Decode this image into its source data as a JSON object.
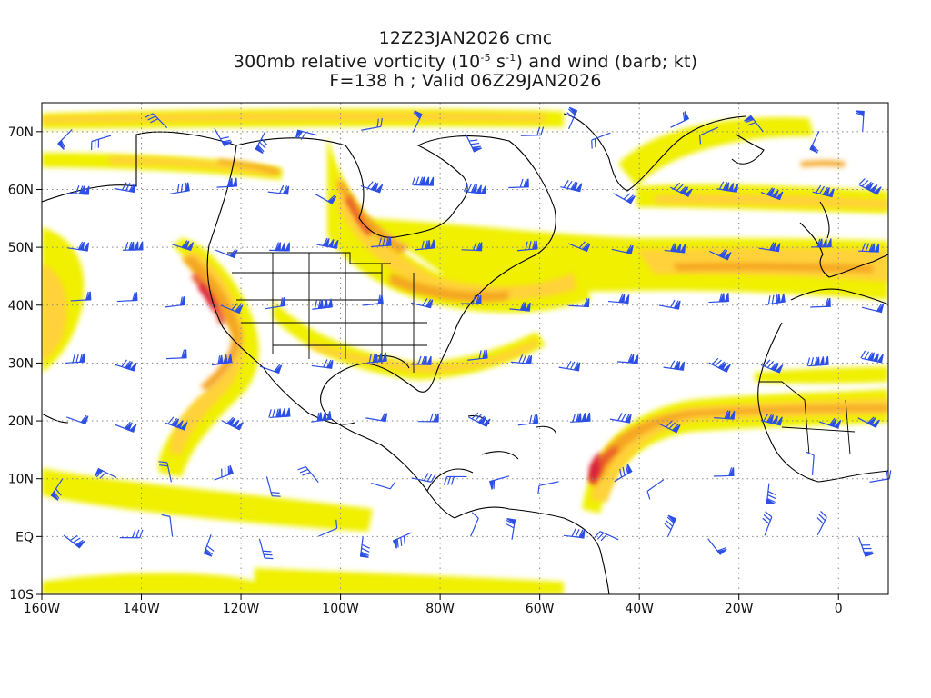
{
  "title": {
    "line1": "12Z23JAN2026 cmc",
    "line2_a": "300mb relative vorticity (10",
    "line2_exp1": "-5",
    "line2_b": " s",
    "line2_exp2": "-1",
    "line2_c": ") and wind (barb; kt)",
    "line3": "F=138 h ; Valid 06Z29JAN2026"
  },
  "axes": {
    "lon_labels": [
      "160W",
      "140W",
      "120W",
      "100W",
      "80W",
      "60W",
      "40W",
      "20W",
      "0"
    ],
    "lon_values": [
      -160,
      -140,
      -120,
      -100,
      -80,
      -60,
      -40,
      -20,
      0
    ],
    "lat_labels": [
      "10S",
      "EQ",
      "10N",
      "20N",
      "30N",
      "40N",
      "50N",
      "60N",
      "70N"
    ],
    "lat_values": [
      -10,
      0,
      10,
      20,
      30,
      40,
      50,
      60,
      70
    ],
    "lon_range": [
      -160,
      10
    ],
    "lat_range": [
      -10,
      75
    ],
    "grid": "dotted"
  },
  "colors": {
    "shade_low": "#f0f000",
    "shade_mid": "#ffd23a",
    "shade_high": "#f5a623",
    "shade_max": "#e8542a",
    "shade_peak": "#d81e3c",
    "barb": "#2c4fe6",
    "coast": "#000000"
  }
}
